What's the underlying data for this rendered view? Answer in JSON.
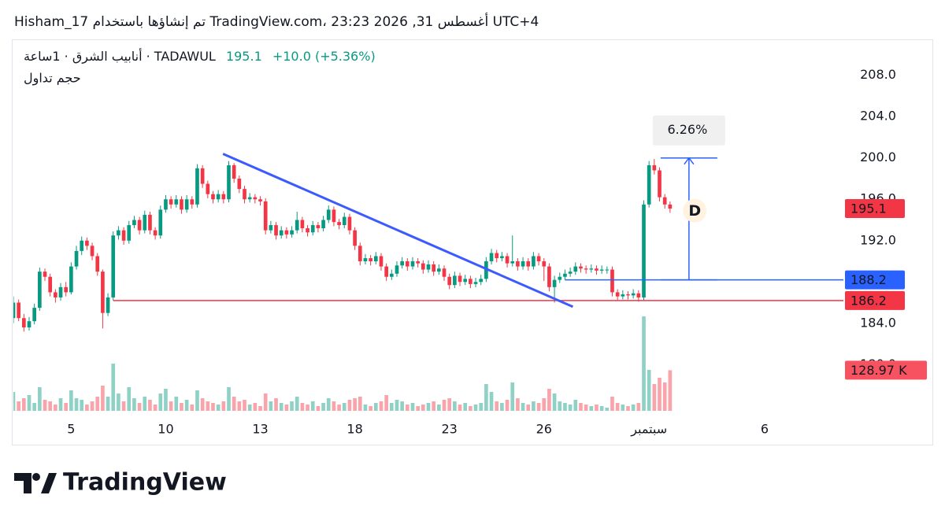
{
  "chart_data": {
    "type": "candlestick",
    "attribution": "Hisham_17 تم إنشاؤها باستخدام TradingView.com، 23:23 2026 ,31 أغسطس UTC+4",
    "symbol_label": "أنابيب الشرق · 1ساعة · TADAWUL",
    "change_label": "+10.0 (+5.36%)",
    "volume_title": "حجم تداول",
    "brand": "TradingView",
    "up_color": "#089981",
    "down_color": "#f23645",
    "xlim": [
      0,
      158
    ],
    "xticks": [
      {
        "value": 11,
        "label": "5"
      },
      {
        "value": 29,
        "label": "10"
      },
      {
        "value": 47,
        "label": "13"
      },
      {
        "value": 65,
        "label": "18"
      },
      {
        "value": 83,
        "label": "23"
      },
      {
        "value": 101,
        "label": "26"
      },
      {
        "value": 121,
        "label": "سبتمبر"
      },
      {
        "value": 143,
        "label": "6"
      }
    ],
    "ylim": [
      175.3,
      211.1
    ],
    "yticks": [
      {
        "value": 180,
        "label": "180.0"
      },
      {
        "value": 184,
        "label": "184.0"
      },
      {
        "value": 188,
        "label": "188.0"
      },
      {
        "value": 192,
        "label": "192.0"
      },
      {
        "value": 196,
        "label": "196.0"
      },
      {
        "value": 200,
        "label": "200.0"
      },
      {
        "value": 204,
        "label": "204.0"
      },
      {
        "value": 208,
        "label": "208.0"
      }
    ],
    "grid": false,
    "volume_lim": [
      0,
      500000
    ],
    "volume_label": "128.97 K",
    "candles": [
      [
        184.5,
        186.6,
        184.0,
        186.0
      ],
      [
        186.0,
        186.3,
        184.2,
        184.5
      ],
      [
        184.5,
        184.9,
        183.2,
        183.6
      ],
      [
        183.6,
        184.6,
        183.3,
        184.2
      ],
      [
        184.2,
        185.9,
        183.9,
        185.5
      ],
      [
        185.5,
        189.4,
        185.2,
        189.0
      ],
      [
        189.0,
        189.3,
        188.1,
        188.5
      ],
      [
        188.5,
        188.8,
        186.6,
        187.0
      ],
      [
        187.0,
        187.3,
        186.0,
        186.5
      ],
      [
        186.5,
        187.9,
        186.2,
        187.5
      ],
      [
        187.5,
        188.0,
        186.6,
        187.0
      ],
      [
        187.0,
        189.9,
        186.8,
        189.5
      ],
      [
        189.5,
        191.5,
        189.2,
        191.0
      ],
      [
        191.0,
        192.4,
        190.6,
        192.0
      ],
      [
        192.0,
        192.3,
        191.1,
        191.5
      ],
      [
        191.5,
        191.8,
        190.1,
        190.5
      ],
      [
        190.5,
        190.8,
        188.6,
        189.0
      ],
      [
        189.0,
        189.2,
        183.5,
        185.0
      ],
      [
        185.0,
        186.9,
        184.7,
        186.5
      ],
      [
        186.5,
        192.9,
        186.2,
        192.5
      ],
      [
        192.5,
        193.4,
        192.1,
        193.0
      ],
      [
        193.0,
        193.3,
        191.6,
        192.0
      ],
      [
        192.0,
        193.9,
        191.7,
        193.5
      ],
      [
        193.5,
        194.4,
        193.2,
        194.0
      ],
      [
        194.0,
        194.3,
        192.6,
        193.0
      ],
      [
        193.0,
        194.9,
        192.7,
        194.5
      ],
      [
        194.5,
        194.8,
        192.6,
        193.0
      ],
      [
        193.0,
        193.3,
        192.1,
        192.5
      ],
      [
        192.5,
        195.4,
        192.2,
        195.0
      ],
      [
        195.0,
        196.4,
        194.7,
        196.0
      ],
      [
        196.0,
        196.3,
        195.1,
        195.5
      ],
      [
        195.5,
        196.4,
        195.2,
        196.0
      ],
      [
        196.0,
        196.3,
        194.6,
        195.0
      ],
      [
        195.0,
        196.4,
        194.7,
        196.0
      ],
      [
        196.0,
        196.3,
        195.1,
        195.5
      ],
      [
        195.5,
        199.4,
        195.2,
        199.0
      ],
      [
        199.0,
        199.3,
        197.1,
        197.5
      ],
      [
        197.5,
        197.8,
        196.1,
        196.5
      ],
      [
        196.5,
        196.8,
        195.6,
        196.0
      ],
      [
        196.0,
        196.9,
        195.7,
        196.5
      ],
      [
        196.5,
        196.8,
        195.6,
        196.0
      ],
      [
        196.0,
        199.7,
        195.7,
        199.3
      ],
      [
        199.3,
        199.5,
        197.6,
        198.0
      ],
      [
        198.0,
        198.3,
        196.6,
        197.0
      ],
      [
        197.0,
        197.3,
        195.6,
        196.0
      ],
      [
        196.0,
        196.6,
        195.7,
        196.2
      ],
      [
        196.2,
        196.5,
        195.6,
        196.0
      ],
      [
        196.0,
        196.3,
        195.4,
        195.8
      ],
      [
        195.8,
        196.1,
        192.6,
        193.0
      ],
      [
        193.0,
        193.9,
        192.7,
        193.5
      ],
      [
        193.5,
        193.8,
        192.1,
        192.5
      ],
      [
        192.5,
        193.4,
        192.2,
        193.0
      ],
      [
        193.0,
        193.3,
        192.2,
        192.6
      ],
      [
        192.6,
        193.4,
        192.3,
        193.0
      ],
      [
        193.0,
        194.8,
        192.7,
        194.0
      ],
      [
        194.0,
        194.3,
        192.8,
        193.2
      ],
      [
        193.2,
        193.5,
        192.4,
        192.8
      ],
      [
        192.8,
        193.9,
        192.5,
        193.5
      ],
      [
        193.5,
        193.8,
        192.8,
        193.2
      ],
      [
        193.2,
        194.4,
        192.9,
        194.0
      ],
      [
        194.0,
        195.4,
        193.7,
        195.0
      ],
      [
        195.0,
        195.3,
        193.4,
        193.8
      ],
      [
        193.8,
        194.1,
        193.1,
        193.5
      ],
      [
        193.5,
        194.7,
        193.2,
        194.3
      ],
      [
        194.3,
        194.6,
        192.6,
        193.0
      ],
      [
        193.0,
        193.3,
        191.1,
        191.5
      ],
      [
        191.5,
        191.8,
        189.6,
        190.0
      ],
      [
        190.0,
        190.7,
        189.7,
        190.3
      ],
      [
        190.3,
        190.6,
        189.6,
        190.0
      ],
      [
        190.0,
        190.9,
        189.7,
        190.5
      ],
      [
        190.5,
        190.8,
        189.1,
        189.5
      ],
      [
        189.5,
        189.8,
        188.1,
        188.5
      ],
      [
        188.5,
        189.2,
        188.2,
        188.8
      ],
      [
        188.8,
        190.0,
        188.5,
        189.6
      ],
      [
        189.6,
        190.4,
        189.3,
        190.0
      ],
      [
        190.0,
        190.3,
        189.1,
        189.5
      ],
      [
        189.5,
        190.4,
        189.2,
        190.0
      ],
      [
        190.0,
        190.3,
        189.4,
        189.8
      ],
      [
        189.8,
        190.1,
        188.8,
        189.2
      ],
      [
        189.2,
        190.1,
        188.9,
        189.7
      ],
      [
        189.7,
        190.0,
        188.6,
        189.0
      ],
      [
        189.0,
        189.7,
        188.7,
        189.3
      ],
      [
        189.3,
        189.6,
        188.1,
        188.5
      ],
      [
        188.5,
        188.8,
        187.3,
        187.7
      ],
      [
        187.7,
        189.0,
        187.4,
        188.6
      ],
      [
        188.6,
        188.9,
        187.6,
        188.0
      ],
      [
        188.0,
        188.7,
        187.7,
        188.3
      ],
      [
        188.3,
        188.6,
        187.4,
        187.8
      ],
      [
        187.8,
        188.4,
        187.5,
        188.0
      ],
      [
        188.0,
        188.7,
        187.7,
        188.3
      ],
      [
        188.3,
        190.4,
        188.0,
        190.0
      ],
      [
        190.0,
        191.2,
        189.7,
        190.8
      ],
      [
        190.8,
        191.1,
        189.9,
        190.3
      ],
      [
        190.3,
        190.9,
        190.0,
        190.5
      ],
      [
        190.5,
        190.8,
        189.4,
        189.8
      ],
      [
        189.8,
        192.5,
        189.5,
        190.0
      ],
      [
        190.0,
        190.3,
        189.1,
        189.5
      ],
      [
        189.5,
        190.4,
        189.2,
        190.0
      ],
      [
        190.0,
        190.3,
        189.1,
        189.5
      ],
      [
        189.5,
        190.9,
        189.2,
        190.5
      ],
      [
        190.5,
        190.8,
        189.6,
        190.0
      ],
      [
        190.0,
        190.3,
        188.1,
        189.5
      ],
      [
        189.5,
        189.8,
        187.1,
        187.5
      ],
      [
        187.5,
        188.6,
        186.0,
        188.2
      ],
      [
        188.2,
        188.9,
        187.9,
        188.5
      ],
      [
        188.5,
        189.2,
        188.2,
        188.8
      ],
      [
        188.8,
        189.4,
        188.5,
        189.0
      ],
      [
        189.0,
        189.9,
        188.7,
        189.5
      ],
      [
        189.5,
        189.8,
        188.9,
        189.3
      ],
      [
        189.3,
        189.6,
        188.8,
        189.2
      ],
      [
        189.2,
        189.7,
        188.9,
        189.3
      ],
      [
        189.3,
        189.6,
        188.7,
        189.1
      ],
      [
        189.1,
        189.6,
        188.8,
        189.2
      ],
      [
        189.2,
        189.5,
        188.8,
        189.2
      ],
      [
        189.2,
        189.5,
        186.6,
        187.0
      ],
      [
        187.0,
        187.3,
        186.2,
        186.6
      ],
      [
        186.6,
        187.2,
        186.3,
        186.8
      ],
      [
        186.8,
        187.1,
        186.3,
        186.7
      ],
      [
        186.7,
        187.3,
        186.4,
        186.9
      ],
      [
        186.9,
        187.2,
        186.1,
        186.5
      ],
      [
        186.5,
        195.9,
        186.2,
        195.5
      ],
      [
        195.5,
        199.7,
        195.2,
        199.3
      ],
      [
        199.3,
        199.9,
        198.4,
        198.8
      ],
      [
        198.8,
        199.1,
        195.8,
        196.2
      ],
      [
        196.2,
        196.5,
        195.1,
        195.5
      ],
      [
        195.5,
        195.8,
        194.7,
        195.1
      ]
    ],
    "volumes": [
      60000,
      30000,
      40000,
      50000,
      25000,
      75000,
      35000,
      30000,
      20000,
      40000,
      25000,
      65000,
      40000,
      35000,
      20000,
      30000,
      45000,
      80000,
      45000,
      150000,
      55000,
      30000,
      75000,
      40000,
      25000,
      45000,
      35000,
      20000,
      55000,
      70000,
      30000,
      45000,
      25000,
      35000,
      20000,
      65000,
      40000,
      30000,
      25000,
      20000,
      30000,
      75000,
      45000,
      30000,
      35000,
      20000,
      25000,
      15000,
      55000,
      30000,
      40000,
      25000,
      20000,
      30000,
      45000,
      25000,
      20000,
      30000,
      15000,
      25000,
      40000,
      30000,
      20000,
      25000,
      35000,
      40000,
      45000,
      20000,
      15000,
      25000,
      30000,
      50000,
      25000,
      35000,
      30000,
      20000,
      25000,
      15000,
      20000,
      25000,
      30000,
      20000,
      35000,
      40000,
      30000,
      20000,
      25000,
      15000,
      20000,
      25000,
      85000,
      60000,
      30000,
      25000,
      35000,
      90000,
      40000,
      25000,
      20000,
      30000,
      25000,
      40000,
      70000,
      55000,
      30000,
      25000,
      20000,
      35000,
      25000,
      20000,
      15000,
      20000,
      15000,
      10000,
      45000,
      25000,
      20000,
      15000,
      20000,
      25000,
      300000,
      130000,
      85000,
      105000,
      90000,
      128970
    ],
    "trendline": {
      "points": [
        [
          39.9,
          200.4
        ],
        [
          106.5,
          185.6
        ]
      ],
      "color": "#3d5afe"
    },
    "hlines": [
      {
        "value": 188.2,
        "from": 105,
        "color": "#2962ff"
      },
      {
        "value": 186.2,
        "from": 19,
        "color": "#f23645"
      }
    ],
    "measure": {
      "from": 188.2,
      "to": 200,
      "x": [
        123.2,
        134
      ],
      "label": "6.26%",
      "color": "#2962ff"
    },
    "marker": {
      "label": "D",
      "x": 129.7,
      "price": 194.9,
      "color": "#f57c00"
    }
  }
}
